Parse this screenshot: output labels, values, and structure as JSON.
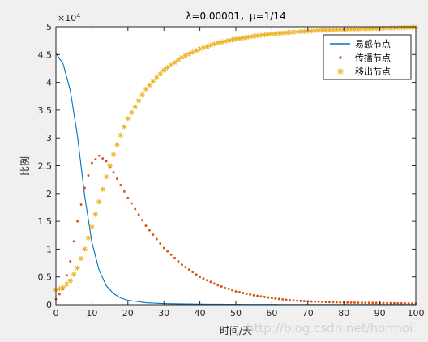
{
  "figure": {
    "background": "#f0f0f0",
    "axes_background": "#ffffff",
    "watermark": "http://blog.csdn.net/hormoi"
  },
  "chart_data": {
    "type": "line",
    "title": "λ=0.00001，μ=1/14",
    "xlabel": "时间/天",
    "ylabel": "比例",
    "y_exponent_label": "×10",
    "y_exponent_power": "4",
    "xlim": [
      0,
      100
    ],
    "ylim": [
      0,
      5
    ],
    "y_multiplier": 10000,
    "xticks": [
      0,
      10,
      20,
      30,
      40,
      50,
      60,
      70,
      80,
      90,
      100
    ],
    "yticks": [
      0,
      0.5,
      1,
      1.5,
      2,
      2.5,
      3,
      3.5,
      4,
      4.5,
      5
    ],
    "xtick_labels": [
      "0",
      "10",
      "20",
      "30",
      "40",
      "50",
      "60",
      "70",
      "80",
      "90",
      "100"
    ],
    "ytick_labels": [
      "0",
      "0.5",
      "1",
      "1.5",
      "2",
      "2.5",
      "3",
      "3.5",
      "4",
      "4.5",
      "5"
    ],
    "grid": false,
    "legend_position": "top-right",
    "legend_labels": [
      "易感节点",
      "传播节点",
      "移出节点"
    ],
    "series": [
      {
        "name": "易感节点",
        "marker": "line",
        "color": "#0072bd",
        "x": [
          0,
          2,
          4,
          6,
          8,
          10,
          12,
          14,
          16,
          18,
          20,
          25,
          30,
          40,
          50,
          60,
          70,
          80,
          90,
          100
        ],
        "y": [
          4.52,
          4.33,
          3.85,
          3.03,
          1.95,
          1.12,
          0.62,
          0.34,
          0.2,
          0.12,
          0.08,
          0.035,
          0.02,
          0.01,
          0.006,
          0.004,
          0.003,
          0.002,
          0.002,
          0.002
        ]
      },
      {
        "name": "传播节点",
        "marker": "dot",
        "color": "#d95319",
        "x": [
          0,
          2,
          4,
          6,
          8,
          10,
          12,
          14,
          16,
          18,
          20,
          25,
          30,
          35,
          40,
          45,
          50,
          55,
          60,
          65,
          70,
          75,
          80,
          85,
          90,
          95,
          100
        ],
        "y": [
          0.1,
          0.28,
          0.78,
          1.5,
          2.1,
          2.55,
          2.68,
          2.58,
          2.38,
          2.15,
          1.92,
          1.42,
          1.02,
          0.72,
          0.5,
          0.35,
          0.24,
          0.17,
          0.12,
          0.08,
          0.06,
          0.05,
          0.04,
          0.035,
          0.03,
          0.025,
          0.02
        ]
      },
      {
        "name": "移出节点",
        "marker": "asterisk",
        "color": "#edb120",
        "x": [
          0,
          2,
          4,
          6,
          8,
          10,
          12,
          14,
          16,
          18,
          20,
          25,
          30,
          35,
          40,
          45,
          50,
          55,
          60,
          65,
          70,
          75,
          80,
          85,
          90,
          95,
          100
        ],
        "y": [
          0.27,
          0.31,
          0.43,
          0.66,
          1.0,
          1.4,
          1.85,
          2.3,
          2.7,
          3.05,
          3.35,
          3.88,
          4.22,
          4.45,
          4.6,
          4.71,
          4.78,
          4.83,
          4.87,
          4.9,
          4.92,
          4.94,
          4.95,
          4.96,
          4.97,
          4.98,
          4.99
        ]
      }
    ]
  }
}
